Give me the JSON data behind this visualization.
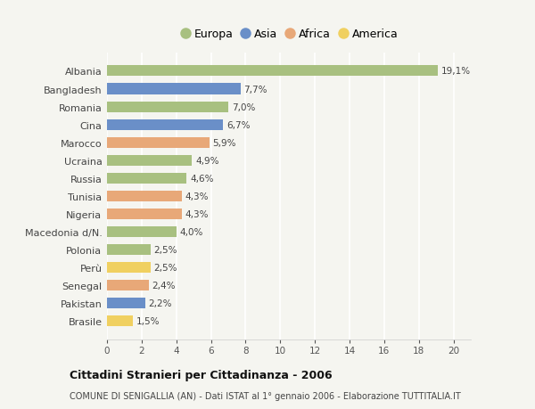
{
  "countries": [
    "Albania",
    "Bangladesh",
    "Romania",
    "Cina",
    "Marocco",
    "Ucraina",
    "Russia",
    "Tunisia",
    "Nigeria",
    "Macedonia d/N.",
    "Polonia",
    "Perù",
    "Senegal",
    "Pakistan",
    "Brasile"
  ],
  "values": [
    19.1,
    7.7,
    7.0,
    6.7,
    5.9,
    4.9,
    4.6,
    4.3,
    4.3,
    4.0,
    2.5,
    2.5,
    2.4,
    2.2,
    1.5
  ],
  "labels": [
    "19,1%",
    "7,7%",
    "7,0%",
    "6,7%",
    "5,9%",
    "4,9%",
    "4,6%",
    "4,3%",
    "4,3%",
    "4,0%",
    "2,5%",
    "2,5%",
    "2,4%",
    "2,2%",
    "1,5%"
  ],
  "continents": [
    "Europa",
    "Asia",
    "Europa",
    "Asia",
    "Africa",
    "Europa",
    "Europa",
    "Africa",
    "Africa",
    "Europa",
    "Europa",
    "America",
    "Africa",
    "Asia",
    "America"
  ],
  "colors": {
    "Europa": "#a8c080",
    "Asia": "#6a8fc8",
    "Africa": "#e8a878",
    "America": "#f0d060"
  },
  "legend_labels": [
    "Europa",
    "Asia",
    "Africa",
    "America"
  ],
  "legend_colors": [
    "#a8c080",
    "#6a8fc8",
    "#e8a878",
    "#f0d060"
  ],
  "xlim": [
    0,
    21
  ],
  "xticks": [
    0,
    2,
    4,
    6,
    8,
    10,
    12,
    14,
    16,
    18,
    20
  ],
  "title": "Cittadini Stranieri per Cittadinanza - 2006",
  "subtitle": "COMUNE DI SENIGALLIA (AN) - Dati ISTAT al 1° gennaio 2006 - Elaborazione TUTTITALIA.IT",
  "background_color": "#f5f5f0",
  "grid_color": "#ffffff",
  "bar_height": 0.6
}
